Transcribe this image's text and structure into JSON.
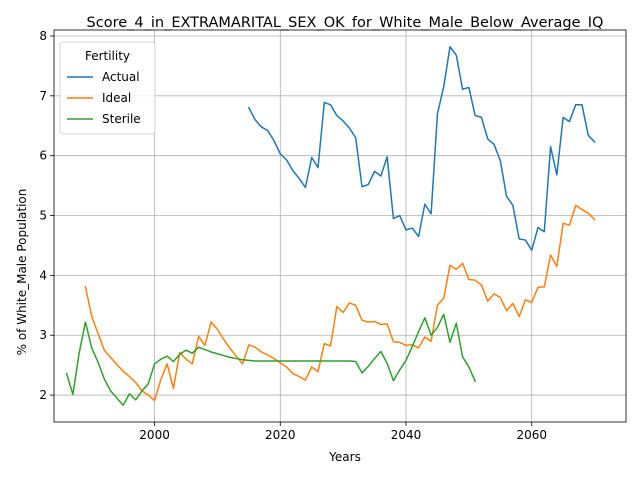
{
  "chart_data": {
    "type": "line",
    "title": "Score_4_in_EXTRAMARITAL_SEX_OK_for_White_Male_Below_Average_IQ",
    "xlabel": "Years",
    "ylabel": "% of White_Male Population",
    "xlim": [
      1984,
      2075
    ],
    "ylim": [
      1.55,
      8.1
    ],
    "xticks": [
      2000,
      2020,
      2040,
      2060
    ],
    "yticks": [
      2,
      3,
      4,
      5,
      6,
      7,
      8
    ],
    "grid": true,
    "legend": {
      "title": "Fertility",
      "position": "upper-left"
    },
    "series": [
      {
        "name": "Actual",
        "color": "#1f77b4",
        "points": [
          [
            2015,
            6.8
          ],
          [
            2016,
            6.6
          ],
          [
            2017,
            6.48
          ],
          [
            2018,
            6.42
          ],
          [
            2019,
            6.25
          ],
          [
            2020,
            6.03
          ],
          [
            2021,
            5.93
          ],
          [
            2022,
            5.75
          ],
          [
            2023,
            5.62
          ],
          [
            2024,
            5.47
          ],
          [
            2025,
            5.97
          ],
          [
            2026,
            5.8
          ],
          [
            2027,
            6.89
          ],
          [
            2028,
            6.85
          ],
          [
            2029,
            6.67
          ],
          [
            2030,
            6.58
          ],
          [
            2031,
            6.46
          ],
          [
            2032,
            6.3
          ],
          [
            2033,
            5.48
          ],
          [
            2034,
            5.52
          ],
          [
            2035,
            5.74
          ],
          [
            2036,
            5.66
          ],
          [
            2037,
            5.98
          ],
          [
            2038,
            4.95
          ],
          [
            2039,
            5.0
          ],
          [
            2040,
            4.76
          ],
          [
            2041,
            4.79
          ],
          [
            2042,
            4.65
          ],
          [
            2043,
            5.19
          ],
          [
            2044,
            5.03
          ],
          [
            2045,
            6.7
          ],
          [
            2046,
            7.15
          ],
          [
            2047,
            7.82
          ],
          [
            2048,
            7.68
          ],
          [
            2049,
            7.11
          ],
          [
            2050,
            7.14
          ],
          [
            2051,
            6.67
          ],
          [
            2052,
            6.64
          ],
          [
            2053,
            6.28
          ],
          [
            2054,
            6.19
          ],
          [
            2055,
            5.92
          ],
          [
            2056,
            5.32
          ],
          [
            2057,
            5.17
          ],
          [
            2058,
            4.61
          ],
          [
            2059,
            4.59
          ],
          [
            2060,
            4.42
          ],
          [
            2061,
            4.8
          ],
          [
            2062,
            4.73
          ],
          [
            2063,
            6.15
          ],
          [
            2064,
            5.68
          ],
          [
            2065,
            6.64
          ],
          [
            2066,
            6.57
          ],
          [
            2067,
            6.85
          ],
          [
            2068,
            6.85
          ],
          [
            2069,
            6.34
          ],
          [
            2070,
            6.23
          ]
        ]
      },
      {
        "name": "Ideal",
        "color": "#ff7f0e",
        "points": [
          [
            1989,
            3.81
          ],
          [
            1990,
            3.32
          ],
          [
            1991,
            3.03
          ],
          [
            1992,
            2.75
          ],
          [
            1993,
            2.63
          ],
          [
            1994,
            2.51
          ],
          [
            1995,
            2.4
          ],
          [
            1996,
            2.31
          ],
          [
            1997,
            2.21
          ],
          [
            1998,
            2.07
          ],
          [
            1999,
            2.0
          ],
          [
            2000,
            1.91
          ],
          [
            2001,
            2.26
          ],
          [
            2002,
            2.52
          ],
          [
            2003,
            2.11
          ],
          [
            2004,
            2.71
          ],
          [
            2005,
            2.6
          ],
          [
            2006,
            2.52
          ],
          [
            2007,
            2.98
          ],
          [
            2008,
            2.83
          ],
          [
            2009,
            3.22
          ],
          [
            2010,
            3.1
          ],
          [
            2011,
            2.93
          ],
          [
            2012,
            2.78
          ],
          [
            2013,
            2.65
          ],
          [
            2014,
            2.52
          ],
          [
            2015,
            2.84
          ],
          [
            2016,
            2.8
          ],
          [
            2017,
            2.72
          ],
          [
            2018,
            2.67
          ],
          [
            2019,
            2.61
          ],
          [
            2020,
            2.54
          ],
          [
            2021,
            2.47
          ],
          [
            2022,
            2.36
          ],
          [
            2023,
            2.31
          ],
          [
            2024,
            2.25
          ],
          [
            2025,
            2.47
          ],
          [
            2026,
            2.39
          ],
          [
            2027,
            2.86
          ],
          [
            2028,
            2.82
          ],
          [
            2029,
            3.48
          ],
          [
            2030,
            3.38
          ],
          [
            2031,
            3.54
          ],
          [
            2032,
            3.5
          ],
          [
            2033,
            3.25
          ],
          [
            2034,
            3.22
          ],
          [
            2035,
            3.23
          ],
          [
            2036,
            3.18
          ],
          [
            2037,
            3.19
          ],
          [
            2038,
            2.89
          ],
          [
            2039,
            2.88
          ],
          [
            2040,
            2.83
          ],
          [
            2041,
            2.84
          ],
          [
            2042,
            2.79
          ],
          [
            2043,
            2.97
          ],
          [
            2044,
            2.9
          ],
          [
            2045,
            3.5
          ],
          [
            2046,
            3.62
          ],
          [
            2047,
            4.17
          ],
          [
            2048,
            4.1
          ],
          [
            2049,
            4.2
          ],
          [
            2050,
            3.93
          ],
          [
            2051,
            3.92
          ],
          [
            2052,
            3.84
          ],
          [
            2053,
            3.57
          ],
          [
            2054,
            3.69
          ],
          [
            2055,
            3.63
          ],
          [
            2056,
            3.41
          ],
          [
            2057,
            3.53
          ],
          [
            2058,
            3.31
          ],
          [
            2059,
            3.59
          ],
          [
            2060,
            3.55
          ],
          [
            2061,
            3.8
          ],
          [
            2062,
            3.81
          ],
          [
            2063,
            4.34
          ],
          [
            2064,
            4.15
          ],
          [
            2065,
            4.87
          ],
          [
            2066,
            4.84
          ],
          [
            2067,
            5.17
          ],
          [
            2068,
            5.1
          ],
          [
            2069,
            5.04
          ],
          [
            2070,
            4.93
          ]
        ]
      },
      {
        "name": "Sterile",
        "color": "#2ca02c",
        "points": [
          [
            1986,
            2.36
          ],
          [
            1987,
            2.01
          ],
          [
            1988,
            2.7
          ],
          [
            1989,
            3.22
          ],
          [
            1990,
            2.79
          ],
          [
            1991,
            2.55
          ],
          [
            1992,
            2.27
          ],
          [
            1993,
            2.07
          ],
          [
            1994,
            1.95
          ],
          [
            1995,
            1.83
          ],
          [
            1996,
            2.02
          ],
          [
            1997,
            1.92
          ],
          [
            1998,
            2.07
          ],
          [
            1999,
            2.19
          ],
          [
            2000,
            2.52
          ],
          [
            2001,
            2.6
          ],
          [
            2002,
            2.65
          ],
          [
            2003,
            2.56
          ],
          [
            2004,
            2.68
          ],
          [
            2005,
            2.75
          ],
          [
            2006,
            2.7
          ],
          [
            2007,
            2.8
          ],
          [
            2008,
            2.76
          ],
          [
            2009,
            2.72
          ],
          [
            2010,
            2.69
          ],
          [
            2011,
            2.66
          ],
          [
            2012,
            2.63
          ],
          [
            2013,
            2.61
          ],
          [
            2014,
            2.59
          ],
          [
            2015,
            2.58
          ],
          [
            2016,
            2.57
          ],
          [
            2017,
            2.57
          ],
          [
            2018,
            2.57
          ],
          [
            2019,
            2.57
          ],
          [
            2020,
            2.57
          ],
          [
            2021,
            2.57
          ],
          [
            2022,
            2.57
          ],
          [
            2023,
            2.57
          ],
          [
            2024,
            2.57
          ],
          [
            2025,
            2.57
          ],
          [
            2026,
            2.57
          ],
          [
            2027,
            2.57
          ],
          [
            2028,
            2.57
          ],
          [
            2029,
            2.57
          ],
          [
            2030,
            2.57
          ],
          [
            2031,
            2.57
          ],
          [
            2032,
            2.56
          ],
          [
            2033,
            2.37
          ],
          [
            2034,
            2.48
          ],
          [
            2035,
            2.61
          ],
          [
            2036,
            2.73
          ],
          [
            2037,
            2.53
          ],
          [
            2038,
            2.24
          ],
          [
            2039,
            2.42
          ],
          [
            2040,
            2.58
          ],
          [
            2041,
            2.81
          ],
          [
            2042,
            3.06
          ],
          [
            2043,
            3.29
          ],
          [
            2044,
            3.0
          ],
          [
            2045,
            3.13
          ],
          [
            2046,
            3.35
          ],
          [
            2047,
            2.88
          ],
          [
            2048,
            3.2
          ],
          [
            2049,
            2.64
          ],
          [
            2050,
            2.47
          ],
          [
            2051,
            2.23
          ]
        ]
      }
    ]
  }
}
